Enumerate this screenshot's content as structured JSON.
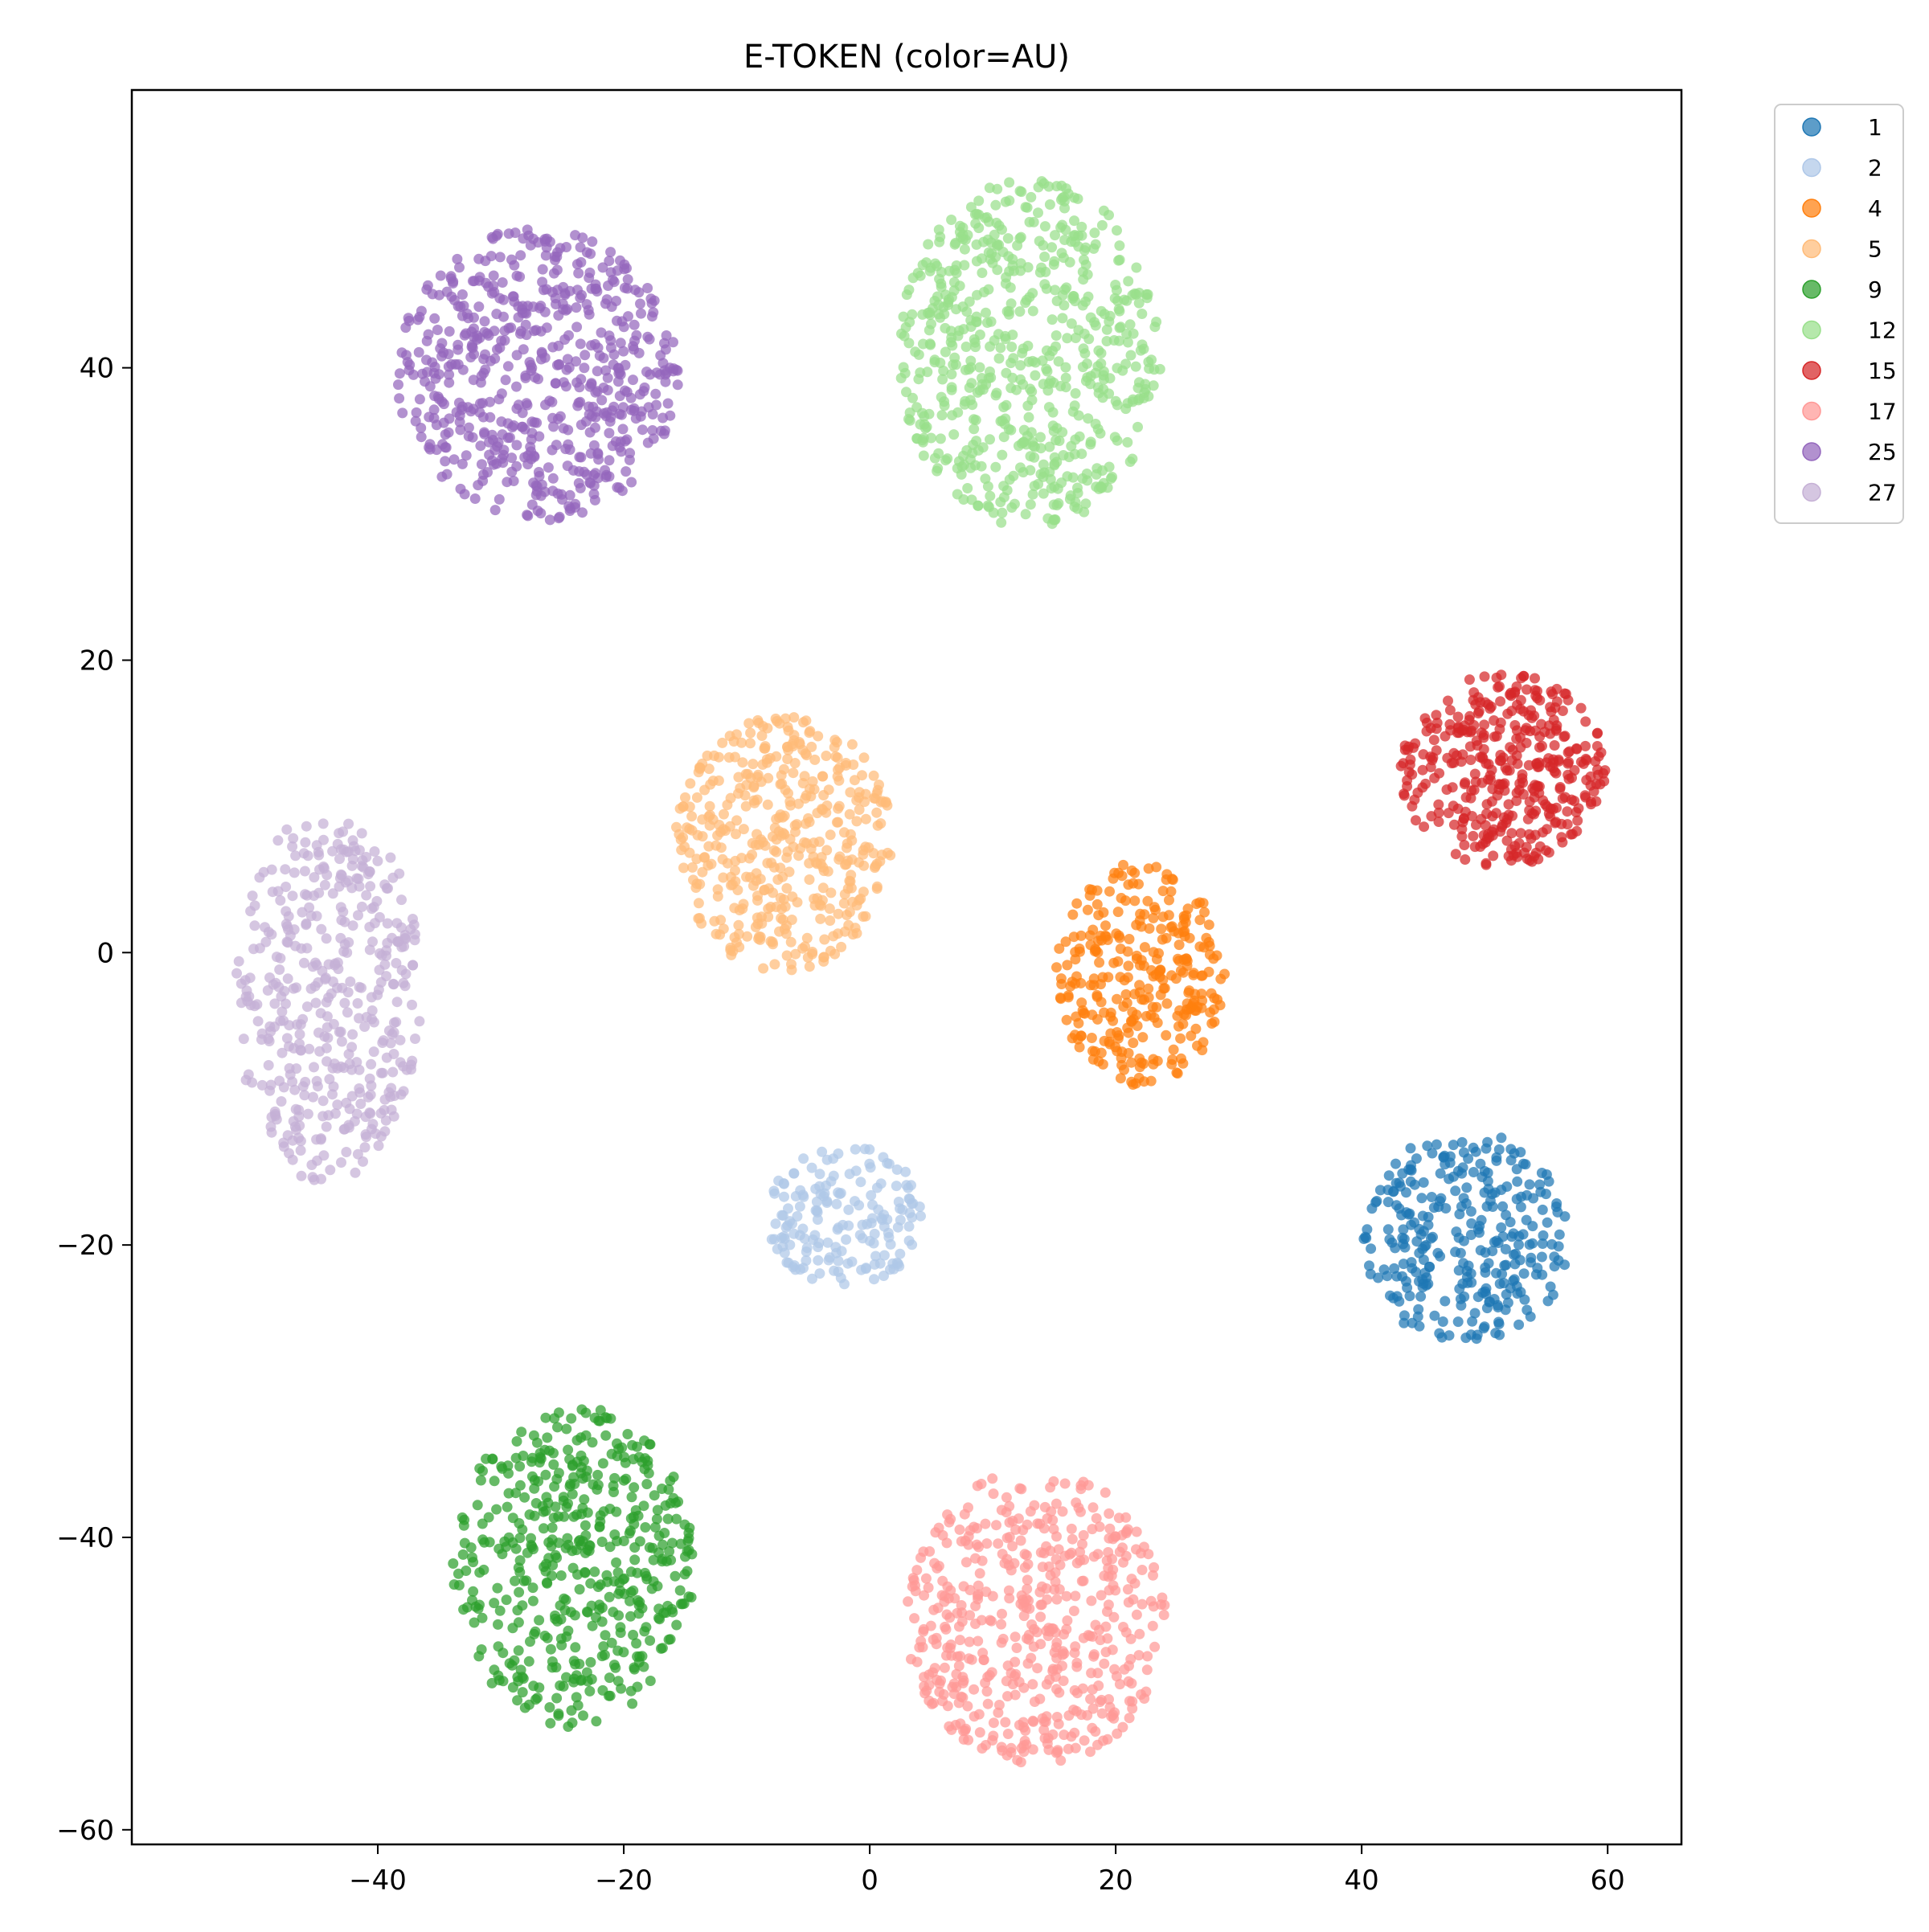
{
  "chart_data": {
    "type": "scatter",
    "title": "E-TOKEN (color=AU)",
    "xlabel": "",
    "ylabel": "",
    "xlim": [
      -60,
      66
    ],
    "ylim": [
      -61,
      59
    ],
    "xticks": [
      -40,
      -20,
      0,
      20,
      40,
      60
    ],
    "yticks": [
      -60,
      -40,
      -20,
      0,
      20,
      40
    ],
    "grid": false,
    "legend": {
      "position": "outside-top-right"
    },
    "series": [
      {
        "name": "1",
        "color": "#1f77b4",
        "cluster": {
          "center": [
            48.5,
            -19.5
          ],
          "spread": [
            5.5,
            4.0
          ],
          "count": 300
        }
      },
      {
        "name": "2",
        "color": "#aec7e8",
        "cluster": {
          "center": [
            -2,
            -18
          ],
          "spread": [
            4.2,
            2.6
          ],
          "count": 170
        }
      },
      {
        "name": "4",
        "color": "#ff7f0e",
        "cluster": {
          "center": [
            22,
            -1.5
          ],
          "spread": [
            4.5,
            4.2
          ],
          "count": 300
        }
      },
      {
        "name": "5",
        "color": "#ffbb78",
        "cluster": {
          "center": [
            -7,
            7.5
          ],
          "spread": [
            5.8,
            4.8
          ],
          "count": 430
        }
      },
      {
        "name": "9",
        "color": "#2ca02c",
        "cluster": {
          "center": [
            -24,
            -42
          ],
          "spread": [
            6.5,
            6.0
          ],
          "count": 480
        }
      },
      {
        "name": "12",
        "color": "#98df8a",
        "cluster": {
          "center": [
            13,
            41
          ],
          "spread": [
            7.0,
            6.5
          ],
          "count": 620
        }
      },
      {
        "name": "15",
        "color": "#d62728",
        "cluster": {
          "center": [
            51.5,
            12.5
          ],
          "spread": [
            5.5,
            3.6
          ],
          "count": 380
        }
      },
      {
        "name": "17",
        "color": "#ff9896",
        "cluster": {
          "center": [
            13.5,
            -45.5
          ],
          "spread": [
            7.0,
            5.5
          ],
          "count": 500
        }
      },
      {
        "name": "25",
        "color": "#9467bd",
        "cluster": {
          "center": [
            -27,
            39.5
          ],
          "spread": [
            7.5,
            5.5
          ],
          "count": 600
        }
      },
      {
        "name": "27",
        "color": "#c5b0d5",
        "cluster": {
          "center": [
            -44,
            -3
          ],
          "spread": [
            5.0,
            7.0
          ],
          "count": 420
        }
      }
    ]
  }
}
